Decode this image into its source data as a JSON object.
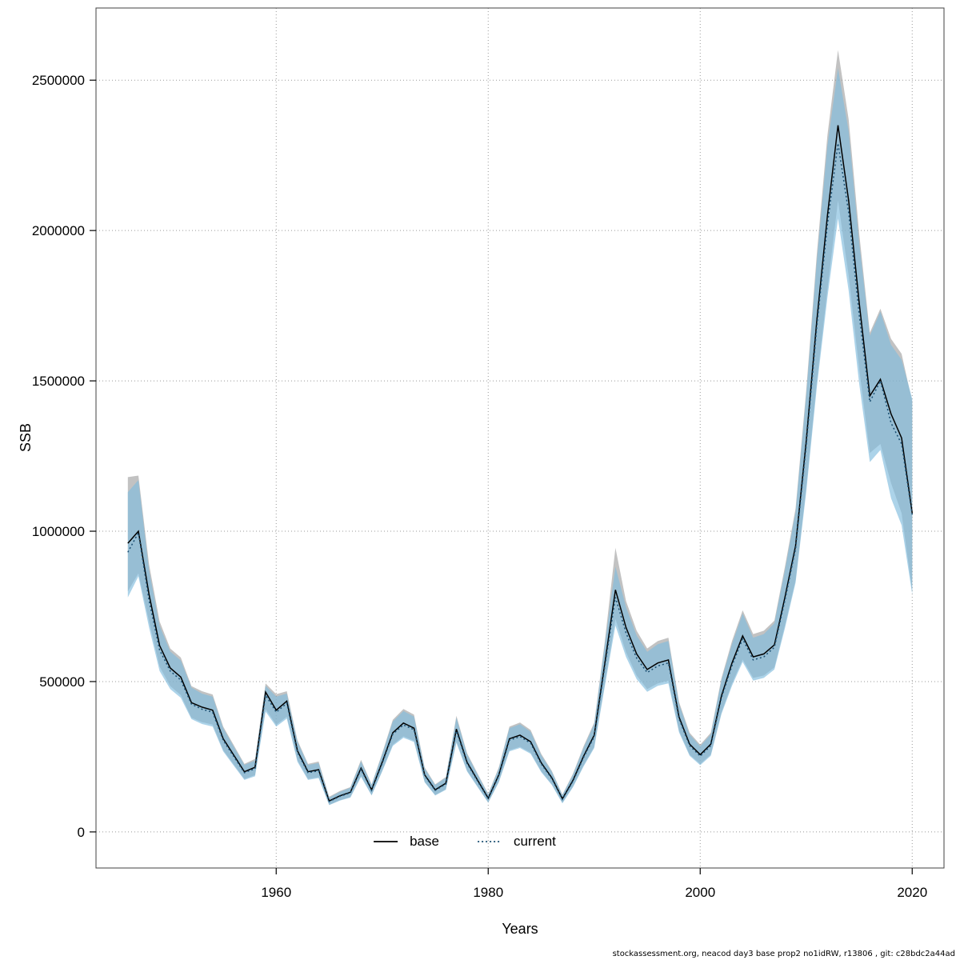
{
  "footer": {
    "attribution": "stockassessment.org, neacod day3 base prop2 no1idRW, r13806 , git: c28bdc2a44ad"
  },
  "chart_data": {
    "type": "line",
    "title": "",
    "xlabel": "Years",
    "ylabel": "SSB",
    "x_range": [
      1943,
      2023
    ],
    "y_range": [
      -120000,
      2740000
    ],
    "x_ticks": [
      1960,
      1980,
      2000,
      2020
    ],
    "y_ticks": [
      0,
      500000,
      1000000,
      1500000,
      2000000,
      2500000
    ],
    "grid": "dotted",
    "legend_position": "bottom-center-inside",
    "x": [
      1946,
      1947,
      1948,
      1949,
      1950,
      1951,
      1952,
      1953,
      1954,
      1955,
      1956,
      1957,
      1958,
      1959,
      1960,
      1961,
      1962,
      1963,
      1964,
      1965,
      1966,
      1967,
      1968,
      1969,
      1970,
      1971,
      1972,
      1973,
      1974,
      1975,
      1976,
      1977,
      1978,
      1979,
      1980,
      1981,
      1982,
      1983,
      1984,
      1985,
      1986,
      1987,
      1988,
      1989,
      1990,
      1991,
      1992,
      1993,
      1994,
      1995,
      1996,
      1997,
      1998,
      1999,
      2000,
      2001,
      2002,
      2003,
      2004,
      2005,
      2006,
      2007,
      2008,
      2009,
      2010,
      2011,
      2012,
      2013,
      2014,
      2015,
      2016,
      2017,
      2018,
      2019,
      2020
    ],
    "series": [
      {
        "name": "base",
        "color": "#000000",
        "line_style": "solid",
        "band_color": "#8f8f8f",
        "band_opacity": 0.55,
        "values": [
          960000,
          1000000,
          790000,
          620000,
          545000,
          515000,
          430000,
          415000,
          405000,
          310000,
          255000,
          200000,
          215000,
          465000,
          405000,
          435000,
          270000,
          200000,
          207000,
          103000,
          120000,
          132000,
          212000,
          140000,
          232000,
          330000,
          362000,
          345000,
          190000,
          140000,
          162000,
          342000,
          232000,
          172000,
          112000,
          190000,
          310000,
          322000,
          300000,
          230000,
          180000,
          110000,
          172000,
          252000,
          322000,
          560000,
          805000,
          680000,
          592000,
          540000,
          562000,
          572000,
          382000,
          292000,
          257000,
          292000,
          452000,
          562000,
          652000,
          582000,
          592000,
          622000,
          782000,
          952000,
          1300000,
          1700000,
          2050000,
          2350000,
          2100000,
          1760000,
          1450000,
          1505000,
          1390000,
          1310000,
          1060000
        ],
        "lower": [
          800000,
          860000,
          700000,
          550000,
          485000,
          455000,
          380000,
          365000,
          357000,
          272000,
          224000,
          176000,
          189000,
          409000,
          356000,
          383000,
          238000,
          176000,
          182000,
          90000,
          105000,
          116000,
          186000,
          123000,
          204000,
          290000,
          318000,
          303000,
          167000,
          123000,
          142000,
          300000,
          204000,
          151000,
          98000,
          167000,
          272000,
          283000,
          264000,
          202000,
          158000,
          97000,
          151000,
          221000,
          283000,
          492000,
          708000,
          598000,
          520000,
          475000,
          494000,
          503000,
          336000,
          257000,
          226000,
          257000,
          397000,
          494000,
          573000,
          512000,
          520000,
          547000,
          688000,
          837000,
          1144000,
          1496000,
          1804000,
          2100000,
          1850000,
          1540000,
          1260000,
          1290000,
          1160000,
          1060000,
          800000
        ],
        "upper": [
          1180000,
          1185000,
          890000,
          700000,
          610000,
          580000,
          485000,
          468000,
          457000,
          350000,
          288000,
          226000,
          243000,
          494000,
          458000,
          468000,
          305000,
          226000,
          234000,
          117000,
          136000,
          149000,
          240000,
          158000,
          262000,
          373000,
          409000,
          390000,
          215000,
          158000,
          183000,
          386000,
          262000,
          194000,
          127000,
          215000,
          350000,
          364000,
          339000,
          260000,
          203000,
          124000,
          194000,
          285000,
          364000,
          633000,
          945000,
          768000,
          669000,
          610000,
          635000,
          646000,
          432000,
          330000,
          290000,
          330000,
          511000,
          635000,
          737000,
          658000,
          669000,
          703000,
          884000,
          1076000,
          1469000,
          1921000,
          2317000,
          2600000,
          2370000,
          1990000,
          1660000,
          1740000,
          1640000,
          1590000,
          1430000
        ]
      },
      {
        "name": "current",
        "color": "#1b4f72",
        "line_style": "dotted",
        "dash": "2,3",
        "band_color": "#7fbbdd",
        "band_opacity": 0.65,
        "values": [
          930000,
          995000,
          770000,
          605000,
          535000,
          505000,
          425000,
          408000,
          398000,
          305000,
          250000,
          197000,
          210000,
          455000,
          398000,
          428000,
          265000,
          197000,
          203000,
          101000,
          118000,
          130000,
          208000,
          138000,
          228000,
          325000,
          356000,
          340000,
          187000,
          138000,
          159000,
          336000,
          228000,
          169000,
          110000,
          187000,
          305000,
          317000,
          295000,
          226000,
          177000,
          108000,
          169000,
          248000,
          317000,
          550000,
          780000,
          662000,
          578000,
          530000,
          552000,
          562000,
          376000,
          287000,
          252000,
          287000,
          446000,
          553000,
          642000,
          572000,
          582000,
          614000,
          772000,
          942000,
          1285000,
          1680000,
          2020000,
          2290000,
          2060000,
          1720000,
          1430000,
          1500000,
          1360000,
          1290000,
          1055000
        ],
        "lower": [
          780000,
          850000,
          680000,
          535000,
          475000,
          446000,
          375000,
          359000,
          350000,
          268000,
          220000,
          173000,
          185000,
          400000,
          350000,
          377000,
          233000,
          173000,
          179000,
          89000,
          104000,
          114000,
          183000,
          121000,
          201000,
          286000,
          313000,
          299000,
          165000,
          121000,
          140000,
          296000,
          201000,
          149000,
          97000,
          165000,
          268000,
          279000,
          260000,
          199000,
          156000,
          95000,
          149000,
          218000,
          279000,
          484000,
          686000,
          582000,
          508000,
          466000,
          486000,
          494000,
          331000,
          253000,
          222000,
          253000,
          392000,
          486000,
          565000,
          503000,
          512000,
          540000,
          679000,
          829000,
          1131000,
          1478000,
          1778000,
          2040000,
          1800000,
          1490000,
          1230000,
          1270000,
          1110000,
          1020000,
          790000
        ],
        "upper": [
          1130000,
          1170000,
          870000,
          685000,
          600000,
          570000,
          480000,
          460000,
          450000,
          345000,
          283000,
          223000,
          237000,
          486000,
          450000,
          460000,
          300000,
          223000,
          229000,
          114000,
          133000,
          147000,
          235000,
          156000,
          258000,
          367000,
          402000,
          384000,
          211000,
          156000,
          180000,
          380000,
          258000,
          191000,
          124000,
          211000,
          345000,
          358000,
          333000,
          255000,
          200000,
          122000,
          191000,
          280000,
          358000,
          622000,
          882000,
          748000,
          653000,
          599000,
          624000,
          635000,
          425000,
          324000,
          285000,
          324000,
          504000,
          625000,
          726000,
          646000,
          658000,
          694000,
          872000,
          1065000,
          1452000,
          1898000,
          2283000,
          2540000,
          2330000,
          1960000,
          1650000,
          1730000,
          1620000,
          1570000,
          1440000
        ]
      }
    ]
  }
}
